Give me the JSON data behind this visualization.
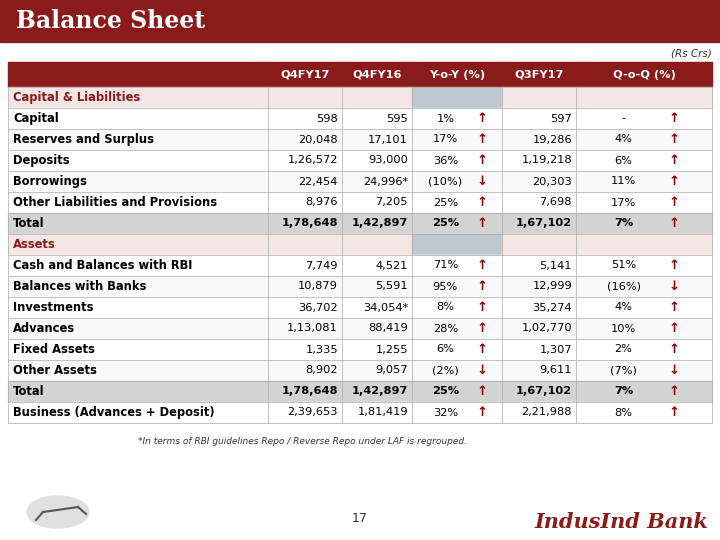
{
  "title": "Balance Sheet",
  "subtitle": "(Rs Crs)",
  "header_bg": "#8B1A1A",
  "header_text_color": "#FFFFFF",
  "title_bg": "#8B1A1A",
  "section_label_color": "#8B1A1A",
  "total_row_bg": "#D3D3D3",
  "section_header_bg": "#F5E6E6",
  "alt_row_bg": "#F9F9F9",
  "white_row_bg": "#FFFFFF",
  "columns": [
    "",
    "Q4FY17",
    "Q4FY16",
    "Y-o-Y (%)",
    "Q3FY17",
    "Q-o-Q (%)"
  ],
  "rows": [
    {
      "label": "Capital & Liabilities",
      "section": true,
      "values": [],
      "bg": "#F5E6E6"
    },
    {
      "label": "Capital",
      "section": false,
      "values": [
        "598",
        "595",
        "1%",
        "↑",
        "597",
        "-",
        "↑"
      ],
      "bg": "#FFFFFF"
    },
    {
      "label": "Reserves and Surplus",
      "section": false,
      "values": [
        "20,048",
        "17,101",
        "17%",
        "↑",
        "19,286",
        "4%",
        "↑"
      ],
      "bg": "#F9F9F9"
    },
    {
      "label": "Deposits",
      "section": false,
      "values": [
        "1,26,572",
        "93,000",
        "36%",
        "↑",
        "1,19,218",
        "6%",
        "↑"
      ],
      "bg": "#FFFFFF"
    },
    {
      "label": "Borrowings",
      "section": false,
      "values": [
        "22,454",
        "24,996*",
        "(10%)",
        "↓",
        "20,303",
        "11%",
        "↑"
      ],
      "bg": "#F9F9F9"
    },
    {
      "label": "Other Liabilities and Provisions",
      "section": false,
      "values": [
        "8,976",
        "7,205",
        "25%",
        "↑",
        "7,698",
        "17%",
        "↑"
      ],
      "bg": "#FFFFFF"
    },
    {
      "label": "Total",
      "section": false,
      "values": [
        "1,78,648",
        "1,42,897",
        "25%",
        "↑",
        "1,67,102",
        "7%",
        "↑"
      ],
      "bg": "#D3D3D3",
      "bold": true
    },
    {
      "label": "Assets",
      "section": true,
      "values": [],
      "bg": "#F5E6E6"
    },
    {
      "label": "Cash and Balances with RBI",
      "section": false,
      "values": [
        "7,749",
        "4,521",
        "71%",
        "↑",
        "5,141",
        "51%",
        "↑"
      ],
      "bg": "#FFFFFF"
    },
    {
      "label": "Balances with Banks",
      "section": false,
      "values": [
        "10,879",
        "5,591",
        "95%",
        "↑",
        "12,999",
        "(16%)",
        "↓"
      ],
      "bg": "#F9F9F9"
    },
    {
      "label": "Investments",
      "section": false,
      "values": [
        "36,702",
        "34,054*",
        "8%",
        "↑",
        "35,274",
        "4%",
        "↑"
      ],
      "bg": "#FFFFFF"
    },
    {
      "label": "Advances",
      "section": false,
      "values": [
        "1,13,081",
        "88,419",
        "28%",
        "↑",
        "1,02,770",
        "10%",
        "↑"
      ],
      "bg": "#F9F9F9"
    },
    {
      "label": "Fixed Assets",
      "section": false,
      "values": [
        "1,335",
        "1,255",
        "6%",
        "↑",
        "1,307",
        "2%",
        "↑"
      ],
      "bg": "#FFFFFF"
    },
    {
      "label": "Other Assets",
      "section": false,
      "values": [
        "8,902",
        "9,057",
        "(2%)",
        "↓",
        "9,611",
        "(7%)",
        "↓"
      ],
      "bg": "#F9F9F9"
    },
    {
      "label": "Total",
      "section": false,
      "values": [
        "1,78,648",
        "1,42,897",
        "25%",
        "↑",
        "1,67,102",
        "7%",
        "↑"
      ],
      "bg": "#D3D3D3",
      "bold": true
    },
    {
      "label": "Business (Advances + Deposit)",
      "section": false,
      "values": [
        "2,39,653",
        "1,81,419",
        "32%",
        "↑",
        "2,21,988",
        "8%",
        "↑"
      ],
      "bg": "#FFFFFF"
    }
  ],
  "footer_note": "*In terms of RBI guidelines Repo / Reverse Repo under LAF is regrouped.",
  "page_number": "17",
  "indusind_color": "#8B1A1A"
}
